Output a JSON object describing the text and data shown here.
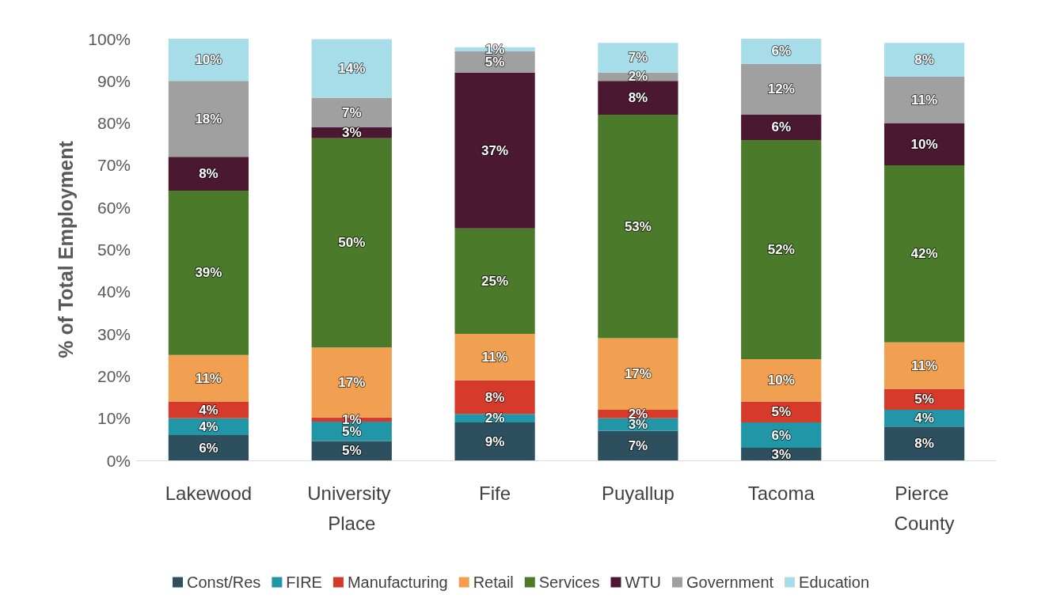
{
  "chart_data": {
    "type": "bar",
    "stacked": true,
    "ylabel": "% of Total Employment",
    "categories": [
      "Lakewood",
      "University Place",
      "Fife",
      "Puyallup",
      "Tacoma",
      "Pierce County"
    ],
    "ylim": [
      0,
      100
    ],
    "yticks": [
      {
        "value": 0,
        "label": "0%"
      },
      {
        "value": 10,
        "label": "10%"
      },
      {
        "value": 20,
        "label": "20%"
      },
      {
        "value": 30,
        "label": "30%"
      },
      {
        "value": 40,
        "label": "40%"
      },
      {
        "value": 50,
        "label": "50%"
      },
      {
        "value": 60,
        "label": "60%"
      },
      {
        "value": 70,
        "label": "70%"
      },
      {
        "value": 80,
        "label": "80%"
      },
      {
        "value": 90,
        "label": "90%"
      },
      {
        "value": 100,
        "label": "100%"
      }
    ],
    "grid": false,
    "legend": "bottom",
    "series": [
      {
        "name": "Const/Res",
        "color": "#2e4f5e",
        "values": [
          6,
          4.6,
          9,
          7,
          3,
          8
        ],
        "value_labels": [
          "6%",
          "5%",
          "9%",
          "7%",
          "3%",
          "8%"
        ]
      },
      {
        "name": "FIRE",
        "color": "#2196a6",
        "values": [
          4,
          4.6,
          2,
          3,
          6,
          4
        ],
        "value_labels": [
          "4%",
          "5%",
          "2%",
          "3%",
          "6%",
          "4%"
        ]
      },
      {
        "name": "Manufacturing",
        "color": "#d63a2a",
        "values": [
          4,
          1.0,
          8,
          2,
          5,
          5
        ],
        "value_labels": [
          "4%",
          "1%",
          "8%",
          "2%",
          "5%",
          "5%"
        ]
      },
      {
        "name": "Retail",
        "color": "#f0a050",
        "values": [
          11,
          16.6,
          11,
          17,
          10,
          11
        ],
        "value_labels": [
          "11%",
          "17%",
          "11%",
          "17%",
          "10%",
          "11%"
        ]
      },
      {
        "name": "Services",
        "color": "#4a7a2a",
        "values": [
          39,
          49.6,
          25,
          53,
          52,
          42
        ],
        "value_labels": [
          "39%",
          "50%",
          "25%",
          "53%",
          "52%",
          "42%"
        ]
      },
      {
        "name": "WTU",
        "color": "#4a1830",
        "values": [
          8,
          2.6,
          37,
          8,
          6,
          10
        ],
        "value_labels": [
          "8%",
          "3%",
          "37%",
          "8%",
          "6%",
          "10%"
        ]
      },
      {
        "name": "Government",
        "color": "#a0a0a0",
        "values": [
          18,
          7.0,
          5,
          2,
          12,
          11
        ],
        "value_labels": [
          "18%",
          "7%",
          "5%",
          "2%",
          "12%",
          "11%"
        ]
      },
      {
        "name": "Education",
        "color": "#a6dde8",
        "values": [
          10,
          13.9,
          1,
          7,
          6,
          8
        ],
        "value_labels": [
          "10%",
          "14%",
          "1%",
          "7%",
          "6%",
          "8%"
        ]
      }
    ]
  }
}
